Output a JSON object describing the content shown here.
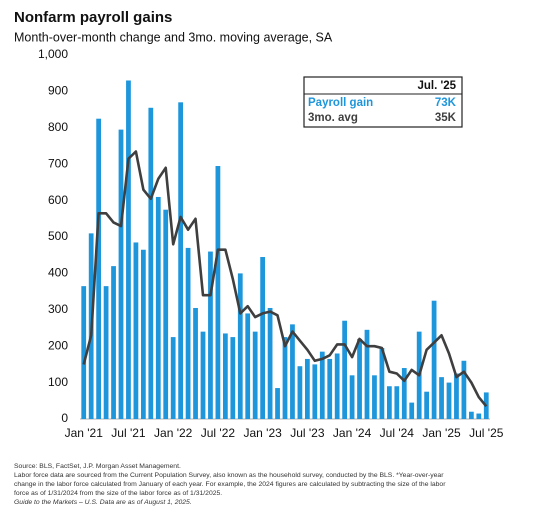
{
  "chart_data": {
    "type": "bar-line",
    "title": "Nonfarm payroll gains",
    "subtitle": "Month-over-month change and 3mo. moving average, SA",
    "categories": [
      "Jan '21",
      null,
      null,
      null,
      null,
      null,
      "Jul '21",
      null,
      null,
      null,
      null,
      null,
      "Jan '22",
      null,
      null,
      null,
      null,
      null,
      "Jul '22",
      null,
      null,
      null,
      null,
      null,
      "Jan '23",
      null,
      null,
      null,
      null,
      null,
      "Jul '23",
      null,
      null,
      null,
      null,
      null,
      "Jan '24",
      null,
      null,
      null,
      null,
      null,
      "Jul '24",
      null,
      null,
      null,
      null,
      null,
      "Jan '25",
      null,
      null,
      null,
      null,
      null,
      "Jul '25"
    ],
    "series": [
      {
        "name": "Payroll gain",
        "color": "#1e96dc",
        "kind": "bar",
        "values": [
          365,
          510,
          825,
          365,
          420,
          795,
          930,
          485,
          465,
          855,
          610,
          575,
          225,
          870,
          470,
          305,
          240,
          460,
          695,
          235,
          225,
          400,
          290,
          240,
          445,
          305,
          85,
          225,
          260,
          145,
          165,
          150,
          185,
          165,
          180,
          270,
          120,
          220,
          245,
          120,
          195,
          90,
          90,
          140,
          45,
          240,
          75,
          325,
          115,
          100,
          125,
          160,
          20,
          15,
          73
        ]
      },
      {
        "name": "3mo. avg",
        "color": "#3f3f3f",
        "kind": "line",
        "values": [
          150,
          230,
          565,
          565,
          540,
          530,
          715,
          735,
          630,
          605,
          660,
          690,
          480,
          555,
          520,
          550,
          340,
          340,
          465,
          465,
          385,
          290,
          310,
          280,
          290,
          295,
          285,
          200,
          240,
          215,
          190,
          160,
          165,
          175,
          205,
          205,
          170,
          220,
          200,
          200,
          195,
          130,
          125,
          105,
          135,
          120,
          190,
          210,
          230,
          180,
          115,
          130,
          100,
          60,
          35
        ]
      }
    ],
    "legend_header": "Jul. '25",
    "legend_values": [
      "73K",
      "35K"
    ],
    "ylim": [
      0,
      1000
    ],
    "yticks": [
      0,
      100,
      200,
      300,
      400,
      500,
      600,
      700,
      800,
      900,
      {
        "value": 1000,
        "label": "1,000"
      }
    ],
    "footnotes": [
      "Source: BLS, FactSet, J.P. Morgan Asset Management.",
      "Labor force data are sourced from the Current Population Survey, also known as the household survey, conducted by the BLS. *Year-over-year",
      "change in the labor force calculated from January of each year. For example, the 2024 figures are calculated by subtracting the size of the labor",
      "force as of 1/31/2024 from the size of the labor force as of 1/31/2025.",
      "Guide to the Markets – U.S. Data are as of August 1, 2025."
    ]
  }
}
